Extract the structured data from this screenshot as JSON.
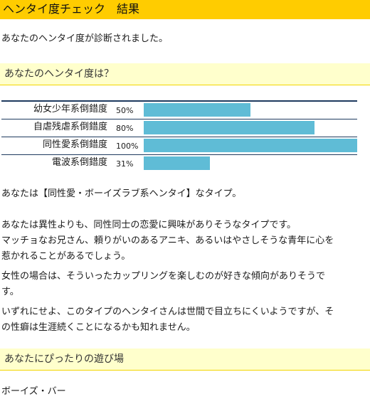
{
  "header": {
    "title": "ヘンタイ度チェック　結果"
  },
  "intro": "あなたのヘンタイ度が診断されました。",
  "section1": {
    "heading": "あなたのヘンタイ度は？"
  },
  "chart_data": {
    "type": "bar",
    "categories": [
      "幼女少年系倒錯度",
      "自虐残虐系倒錯度",
      "同性愛系倒錯度",
      "電波系倒錯度"
    ],
    "values": [
      50,
      80,
      100,
      31
    ],
    "value_labels": [
      "50%",
      "80%",
      "100%",
      "31%"
    ],
    "xlim": [
      0,
      100
    ],
    "bar_color": "#5fbcd6",
    "line_color": "#1e3a5f"
  },
  "result": {
    "type_line": "あなたは【同性愛・ボーイズラブ系ヘンタイ】なタイプ。",
    "desc": [
      "あなたは異性よりも、同性同士の恋愛に興味がありそうなタイプです。",
      "マッチョなお兄さん、頼りがいのあるアニキ、あるいはやさしそうな青年に心を",
      "惹かれることがあるでしょう。",
      "女性の場合は、そういったカップリングを楽しむのが好きな傾向がありそうで",
      "す。",
      "いずれにせよ、このタイプのヘンタイさんは世間で目立ちにくいようですが、そ",
      "の性癖は生涯続くことになるかも知れません。"
    ]
  },
  "section2": {
    "heading": "あなたにぴったりの遊び場"
  },
  "place": "ボーイズ・バー",
  "colors": {
    "title_bg": "#ffcc00",
    "section_bg": "#ffffcc"
  }
}
